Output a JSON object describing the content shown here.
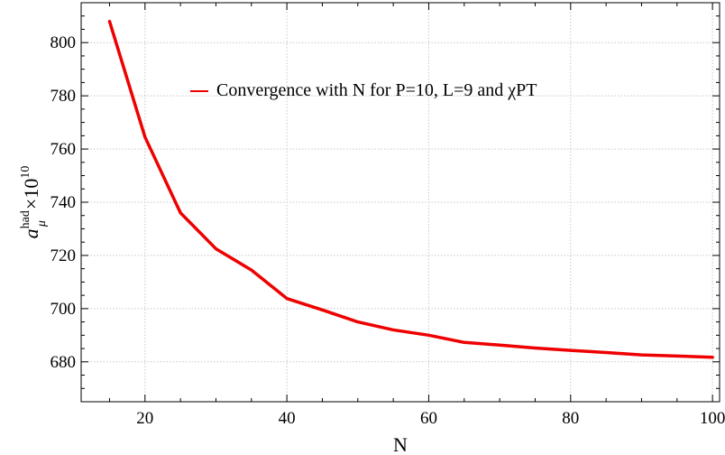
{
  "chart_data": {
    "type": "line",
    "xlabel": "N",
    "ylabel": {
      "base": "a",
      "superscript": "had",
      "subscript": "μ",
      "suffix": "×10",
      "suffix_superscript": "10"
    },
    "xlim": [
      11,
      101
    ],
    "ylim": [
      665,
      815
    ],
    "xticks": [
      20,
      40,
      60,
      80,
      100
    ],
    "yticks": [
      680,
      700,
      720,
      740,
      760,
      780,
      800
    ],
    "grid": true,
    "legend_placement": "top-center",
    "series": [
      {
        "name": "Convergence with N for P=10, L=9 and χPT",
        "color": "#ee0000",
        "x": [
          15,
          20,
          25,
          30,
          35,
          40,
          45,
          50,
          55,
          60,
          65,
          70,
          75,
          80,
          85,
          90,
          95,
          100
        ],
        "y": [
          808,
          764.5,
          736,
          722.5,
          714.5,
          703.8,
          699.5,
          695,
          692,
          690,
          687.3,
          686.3,
          685.2,
          684.3,
          683.5,
          682.6,
          682.2,
          681.7
        ]
      }
    ]
  }
}
